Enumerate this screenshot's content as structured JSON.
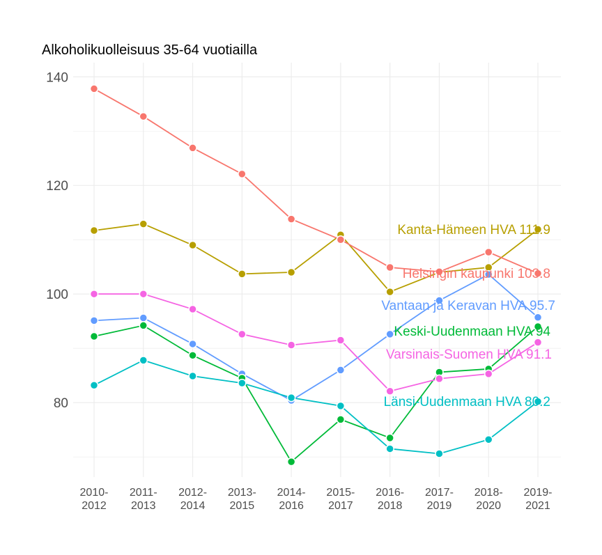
{
  "chart_data": {
    "type": "line",
    "title": "Alkoholikuolleisuus 35-64 vuotiailla",
    "xlabel": "",
    "ylabel": "",
    "categories": [
      "2010-\n2012",
      "2011-\n2013",
      "2012-\n2014",
      "2013-\n2015",
      "2014-\n2016",
      "2015-\n2017",
      "2016-\n2018",
      "2017-\n2019",
      "2018-\n2020",
      "2019-\n2021"
    ],
    "ylim": [
      66.3,
      142.6
    ],
    "yticks": [
      80,
      100,
      120,
      140
    ],
    "grid": true,
    "legend": "direct labels at series end",
    "series": [
      {
        "name": "Kanta-Hämeen HVA",
        "label": "Kanta-Hämeen HVA 111.9",
        "color": "#B79F00",
        "values": [
          111.7,
          112.9,
          109.0,
          103.7,
          104.0,
          110.9,
          100.4,
          104.0,
          104.9,
          111.9
        ]
      },
      {
        "name": "Helsingin kaupunki",
        "label": "Helsingin kaupunki 103.8",
        "color": "#F8766D",
        "values": [
          137.8,
          132.7,
          126.9,
          122.1,
          113.8,
          110.0,
          104.9,
          104.1,
          107.7,
          103.8
        ]
      },
      {
        "name": "Vantaan ja Keravan HVA",
        "label": "Vantaan ja Keravan HVA 95.7",
        "color": "#619CFF",
        "values": [
          95.1,
          95.6,
          90.8,
          85.3,
          80.4,
          86.0,
          92.6,
          98.8,
          103.6,
          95.7
        ]
      },
      {
        "name": "Keski-Uudenmaan HVA",
        "label": "Keski-Uudenmaan HVA 94",
        "color": "#00BA38",
        "values": [
          92.2,
          94.2,
          88.7,
          84.5,
          69.1,
          76.9,
          73.5,
          85.6,
          86.2,
          94.0
        ]
      },
      {
        "name": "Varsinais-Suomen HVA",
        "label": "Varsinais-Suomen HVA 91.1",
        "color": "#F564E3",
        "values": [
          100.0,
          100.0,
          97.2,
          92.6,
          90.6,
          91.5,
          82.1,
          84.4,
          85.3,
          91.1
        ]
      },
      {
        "name": "Länsi-Uudenmaan HVA",
        "label": "Länsi-Uudenmaan HVA 80.2",
        "color": "#00BFC4",
        "values": [
          83.2,
          87.8,
          84.9,
          83.6,
          80.9,
          79.4,
          71.5,
          70.6,
          73.2,
          80.2
        ]
      }
    ]
  }
}
